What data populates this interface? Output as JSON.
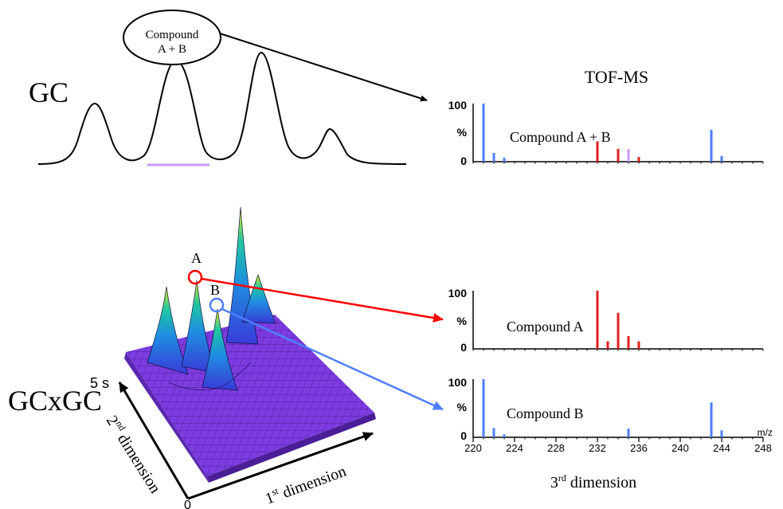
{
  "gc": {
    "label": "GC",
    "callout": {
      "line1": "Compound",
      "line2": "A + B"
    },
    "trace_color": "#000000",
    "coelution_bar_color": "#cc99ff"
  },
  "tof": {
    "title": "TOF-MS"
  },
  "gcxgc": {
    "label": "GCxGC",
    "peak_a_label": "A",
    "peak_b_label": "B",
    "peak_a_color": "#ff0000",
    "peak_b_color": "#4f7fff",
    "surface_base_color": "#7c3ce0",
    "axis_2nd": {
      "ordinal": "2",
      "sup": "nd",
      "text": " dimension",
      "top_tick": "5 s",
      "bottom_tick": "0"
    },
    "axis_1st": {
      "ordinal": "1",
      "sup": "st",
      "text": " dimension"
    }
  },
  "third_dimension": {
    "ordinal": "3",
    "sup": "rd",
    "text": " dimension"
  },
  "chart_data": [
    {
      "type": "bar",
      "name": "Compound A + B",
      "label": "Compound A + B",
      "ylabels": [
        "100",
        "%",
        "0"
      ],
      "xlim": [
        220,
        248
      ],
      "peaks": [
        {
          "mz": 221,
          "intensity": 100,
          "color": "#4f7fff"
        },
        {
          "mz": 222,
          "intensity": 15,
          "color": "#4f7fff"
        },
        {
          "mz": 223,
          "intensity": 7,
          "color": "#4f7fff"
        },
        {
          "mz": 232,
          "intensity": 35,
          "color": "#e02020"
        },
        {
          "mz": 234,
          "intensity": 22,
          "color": "#e02020"
        },
        {
          "mz": 235,
          "intensity": 22,
          "color": "#cc99ff"
        },
        {
          "mz": 236,
          "intensity": 8,
          "color": "#e02020"
        },
        {
          "mz": 243,
          "intensity": 55,
          "color": "#4f7fff"
        },
        {
          "mz": 244,
          "intensity": 10,
          "color": "#4f7fff"
        }
      ]
    },
    {
      "type": "bar",
      "name": "Compound A",
      "label": "Compound A",
      "ylabels": [
        "100",
        "%",
        "0"
      ],
      "xlim": [
        220,
        248
      ],
      "peaks": [
        {
          "mz": 232,
          "intensity": 100,
          "color": "#e02020"
        },
        {
          "mz": 233,
          "intensity": 13,
          "color": "#e02020"
        },
        {
          "mz": 234,
          "intensity": 62,
          "color": "#e02020"
        },
        {
          "mz": 235,
          "intensity": 22,
          "color": "#e02020"
        },
        {
          "mz": 236,
          "intensity": 13,
          "color": "#e02020"
        }
      ]
    },
    {
      "type": "bar",
      "name": "Compound B",
      "label": "Compound B",
      "ylabels": [
        "100",
        "%",
        "0"
      ],
      "xlim": [
        220,
        248
      ],
      "xlabel": "m/z",
      "xticks": [
        "220",
        "224",
        "228",
        "232",
        "236",
        "240",
        "244",
        "248"
      ],
      "peaks": [
        {
          "mz": 221,
          "intensity": 100,
          "color": "#4f7fff"
        },
        {
          "mz": 222,
          "intensity": 16,
          "color": "#4f7fff"
        },
        {
          "mz": 223,
          "intensity": 5,
          "color": "#4f7fff"
        },
        {
          "mz": 235,
          "intensity": 15,
          "color": "#4f7fff"
        },
        {
          "mz": 243,
          "intensity": 60,
          "color": "#4f7fff"
        },
        {
          "mz": 244,
          "intensity": 12,
          "color": "#4f7fff"
        }
      ]
    }
  ]
}
